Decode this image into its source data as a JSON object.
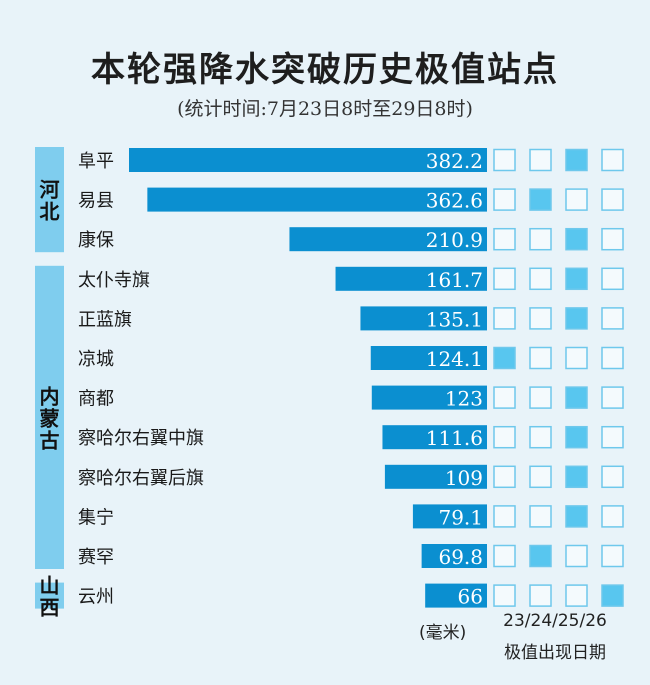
{
  "header": {
    "title": "本轮强降水突破历史极值站点",
    "subtitle": "(统计时间:7月23日8时至29日8时)"
  },
  "legend": {
    "unit_label": "(毫米)",
    "dates_label": "23/24/25/26",
    "caption": "极值出现日期"
  },
  "colors": {
    "background": "#e8f3f9",
    "bar": "#0b8fd0",
    "region_band": "#7fcdee",
    "marker_fill": "#58c6ef",
    "marker_empty": "#f4fafd",
    "marker_border": "#6ec8ec"
  },
  "chart_data": {
    "type": "bar",
    "orientation": "horizontal",
    "title": "本轮强降水突破历史极值站点",
    "subtitle": "(统计时间:7月23日8时至29日8时)",
    "unit": "(毫米)",
    "regions": [
      {
        "name": "河北",
        "stations": [
          "阜平",
          "易县",
          "康保"
        ]
      },
      {
        "name": "内蒙古",
        "stations": [
          "太仆寺旗",
          "正蓝旗",
          "凉城",
          "商都",
          "察哈尔右翼中旗",
          "察哈尔右翼后旗",
          "集宁",
          "赛罕"
        ]
      },
      {
        "name": "山西",
        "stations": [
          "云州"
        ]
      }
    ],
    "categories": [
      "阜平",
      "易县",
      "康保",
      "太仆寺旗",
      "正蓝旗",
      "凉城",
      "商都",
      "察哈尔右翼中旗",
      "察哈尔右翼后旗",
      "集宁",
      "赛罕",
      "云州"
    ],
    "values": [
      382.2,
      362.6,
      210.9,
      161.7,
      135.1,
      124.1,
      123,
      111.6,
      109,
      79.1,
      69.8,
      66
    ],
    "value_labels": [
      "382.2",
      "362.6",
      "210.9",
      "161.7",
      "135.1",
      "124.1",
      "123",
      "111.6",
      "109",
      "79.1",
      "69.8",
      "66"
    ],
    "dates": [
      "23",
      "24",
      "25",
      "26"
    ],
    "extreme_dates": [
      "25",
      "24",
      "25",
      "25",
      "25",
      "23",
      "25",
      "25",
      "25",
      "25",
      "24",
      "26"
    ],
    "xlim": [
      0,
      382.2
    ],
    "grid": false,
    "legend": "bottom-right"
  }
}
